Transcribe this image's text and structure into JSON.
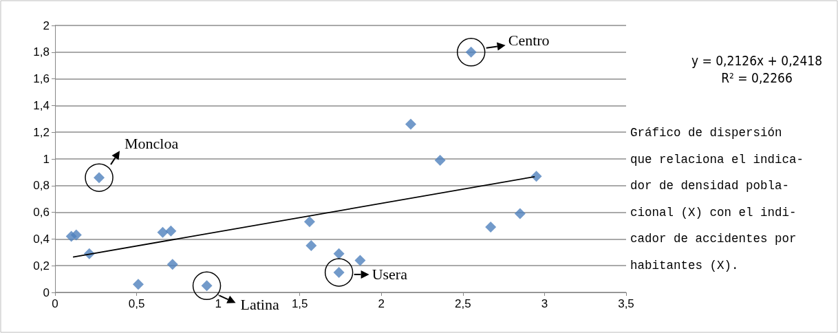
{
  "chart_data": {
    "type": "scatter",
    "marker": "diamond",
    "grid": "y",
    "xlim": [
      0,
      3.5
    ],
    "xticks": [
      0,
      {
        "value": 0.5,
        "label": "0,5"
      },
      1,
      {
        "value": 1.5,
        "label": "1,5"
      },
      2,
      {
        "value": 2.5,
        "label": "2,5"
      },
      3,
      {
        "value": 3.5,
        "label": "3,5"
      }
    ],
    "ylim": [
      0,
      2
    ],
    "yticks": [
      0,
      {
        "value": 0.2,
        "label": "0,2"
      },
      {
        "value": 0.4,
        "label": "0,4"
      },
      {
        "value": 0.6,
        "label": "0,6"
      },
      {
        "value": 0.8,
        "label": "0,8"
      },
      1,
      {
        "value": 1.2,
        "label": "1,2"
      },
      {
        "value": 1.4,
        "label": "1,4"
      },
      {
        "value": 1.6,
        "label": "1,6"
      },
      {
        "value": 1.8,
        "label": "1,8"
      },
      2
    ],
    "series": [
      {
        "color": "#4f81bd",
        "x": [
          0.1,
          0.13,
          0.21,
          0.27,
          0.51,
          0.66,
          0.71,
          0.72,
          0.93,
          1.56,
          1.57,
          1.74,
          1.74,
          1.87,
          2.18,
          2.36,
          2.55,
          2.67,
          2.85,
          2.95
        ],
        "values": [
          0.42,
          0.43,
          0.29,
          0.86,
          0.06,
          0.45,
          0.46,
          0.21,
          0.05,
          0.53,
          0.35,
          0.29,
          0.15,
          0.24,
          1.26,
          0.99,
          1.8,
          0.49,
          0.59,
          0.87
        ]
      },
      {
        "type": "line",
        "color": "#000000",
        "marker": "none",
        "x": [
          0.11,
          2.94
        ],
        "values": [
          0.265,
          0.867
        ]
      }
    ],
    "annotations": [
      {
        "text": "Centro",
        "x": 2.55,
        "y": 1.8
      },
      {
        "text": "Moncloa",
        "x": 0.27,
        "y": 0.86
      },
      {
        "text": "Latina",
        "x": 0.93,
        "y": 0.05
      },
      {
        "text": "Usera",
        "x": 1.74,
        "y": 0.15
      },
      "y = 0,2126x + 0,2418",
      "R² = 0,2266",
      "Gráfico de dispersión\nque relaciona el indica-\ndor de densidad pobla-\ncional (X) con el indi-\ncador de accidentes por\nhabitantes (X)."
    ]
  }
}
